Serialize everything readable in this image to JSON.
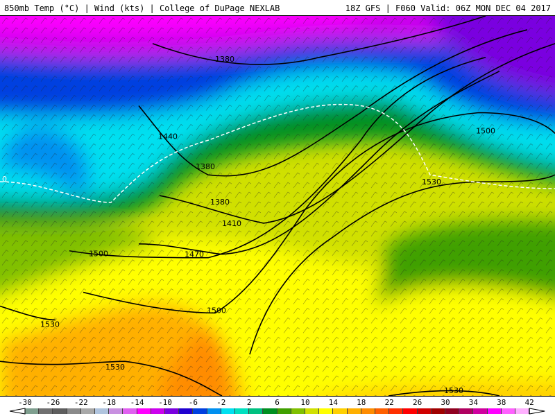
{
  "header": {
    "left": "850mb Temp (°C) | Wind (kts) | College of DuPage NEXLAB",
    "right": "18Z GFS | F060 Valid: 06Z MON DEC 04 2017"
  },
  "colorbar": {
    "labels": [
      "-30",
      "-26",
      "-22",
      "-18",
      "-14",
      "-10",
      "-6",
      "-2",
      "2",
      "6",
      "10",
      "14",
      "18",
      "22",
      "26",
      "30",
      "34",
      "38",
      "42"
    ],
    "colors": [
      "#7f9f8f",
      "#707070",
      "#5e5e5e",
      "#8a8a8a",
      "#a8a8a8",
      "#b0c4de",
      "#c890e0",
      "#e060f0",
      "#ff00ff",
      "#cc00ee",
      "#7a00e0",
      "#2000d0",
      "#0040e0",
      "#0090f0",
      "#00e0f0",
      "#00e0c0",
      "#00c080",
      "#009020",
      "#40a000",
      "#80c000",
      "#d0e000",
      "#ffff00",
      "#ffd000",
      "#ffb000",
      "#ff8c00",
      "#ff6000",
      "#ff3000",
      "#ff0000",
      "#d00000",
      "#a00000",
      "#900020",
      "#b00060",
      "#d000a0",
      "#ff00ff",
      "#ff60ff",
      "#ffb0ff"
    ]
  },
  "contours": {
    "labels": [
      "1380",
      "1440",
      "1380",
      "1380",
      "1410",
      "1470",
      "1500",
      "1500",
      "1530",
      "1530",
      "1530",
      "1500",
      "1530",
      "1500"
    ],
    "freezing_line": "0"
  }
}
